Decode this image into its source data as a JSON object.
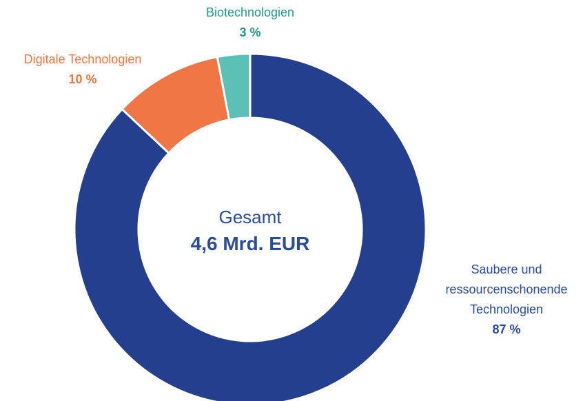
{
  "chart_data": {
    "type": "donut",
    "categories": [
      "Saubere und ressourcenschonende Technologien",
      "Digitale Technologien",
      "Biotechnologien"
    ],
    "values": [
      87,
      10,
      3
    ],
    "value_labels": [
      "87 %",
      "10 %",
      "3 %"
    ],
    "colors": [
      "#253f8f",
      "#f07646",
      "#5bc1b6"
    ],
    "label_colors": [
      "#2b4b9b",
      "#f07646",
      "#22978b"
    ],
    "center_label": "Gesamt",
    "center_value": "4,6 Mrd. EUR"
  }
}
